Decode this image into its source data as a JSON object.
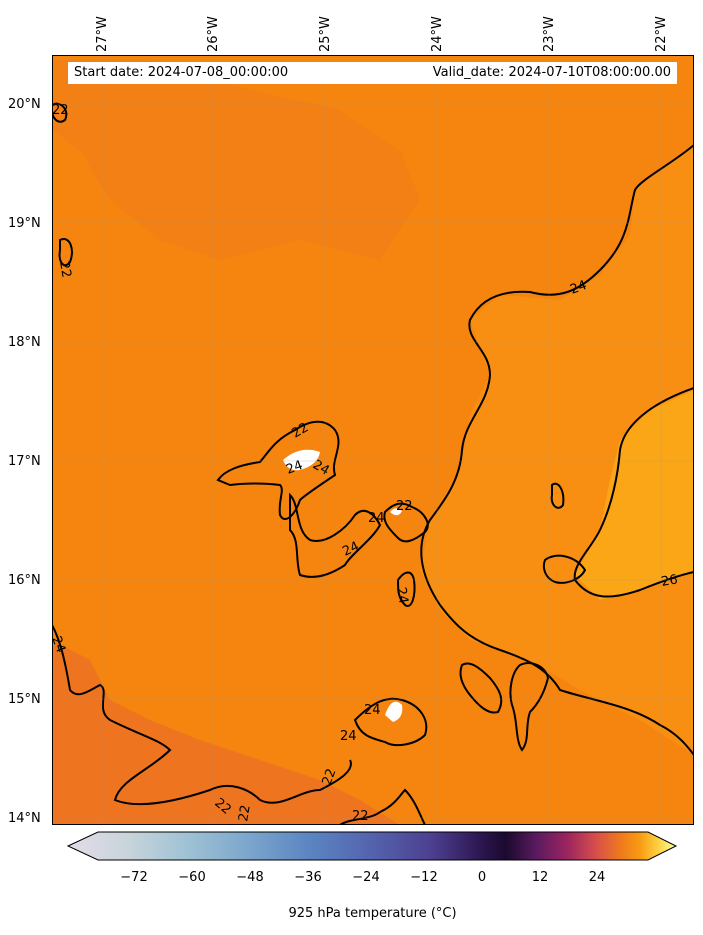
{
  "header": {
    "start_date": "Start date: 2024-07-08_00:00:00",
    "valid_date": "Valid_date: 2024-07-10T08:00:00.00"
  },
  "map": {
    "lon_labels": [
      "27°W",
      "26°W",
      "25°W",
      "24°W",
      "23°W",
      "22°W"
    ],
    "lat_labels": [
      "20°N",
      "19°N",
      "18°N",
      "17°N",
      "16°N",
      "15°N",
      "14°N"
    ],
    "contour_labels": [
      "22",
      "22",
      "22",
      "24",
      "24",
      "22",
      "24",
      "24",
      "24",
      "26",
      "24",
      "24",
      "22",
      "22",
      "22",
      "22",
      "24",
      "24"
    ]
  },
  "colorbar": {
    "ticks": [
      "−72",
      "−60",
      "−48",
      "−36",
      "−24",
      "−12",
      "0",
      "12",
      "24"
    ],
    "label": "925 hPa temperature ($^\\circ$C)",
    "label_display": "925 hPa temperature (°C)",
    "colors": [
      "#e3dce8",
      "#c7d4db",
      "#9dc1d4",
      "#7aa5cc",
      "#5a84c2",
      "#5463ae",
      "#4d3f8f",
      "#2c1650",
      "#1a0a2e",
      "#5a1a60",
      "#9a2460",
      "#d8504a",
      "#f07a1c",
      "#f99a12",
      "#fcd040",
      "#fbfca4"
    ]
  },
  "colors": {
    "field_main": "#f5850f",
    "field_warm": "#fb9f15",
    "field_cool": "#ee7420",
    "contour": "#000000"
  }
}
